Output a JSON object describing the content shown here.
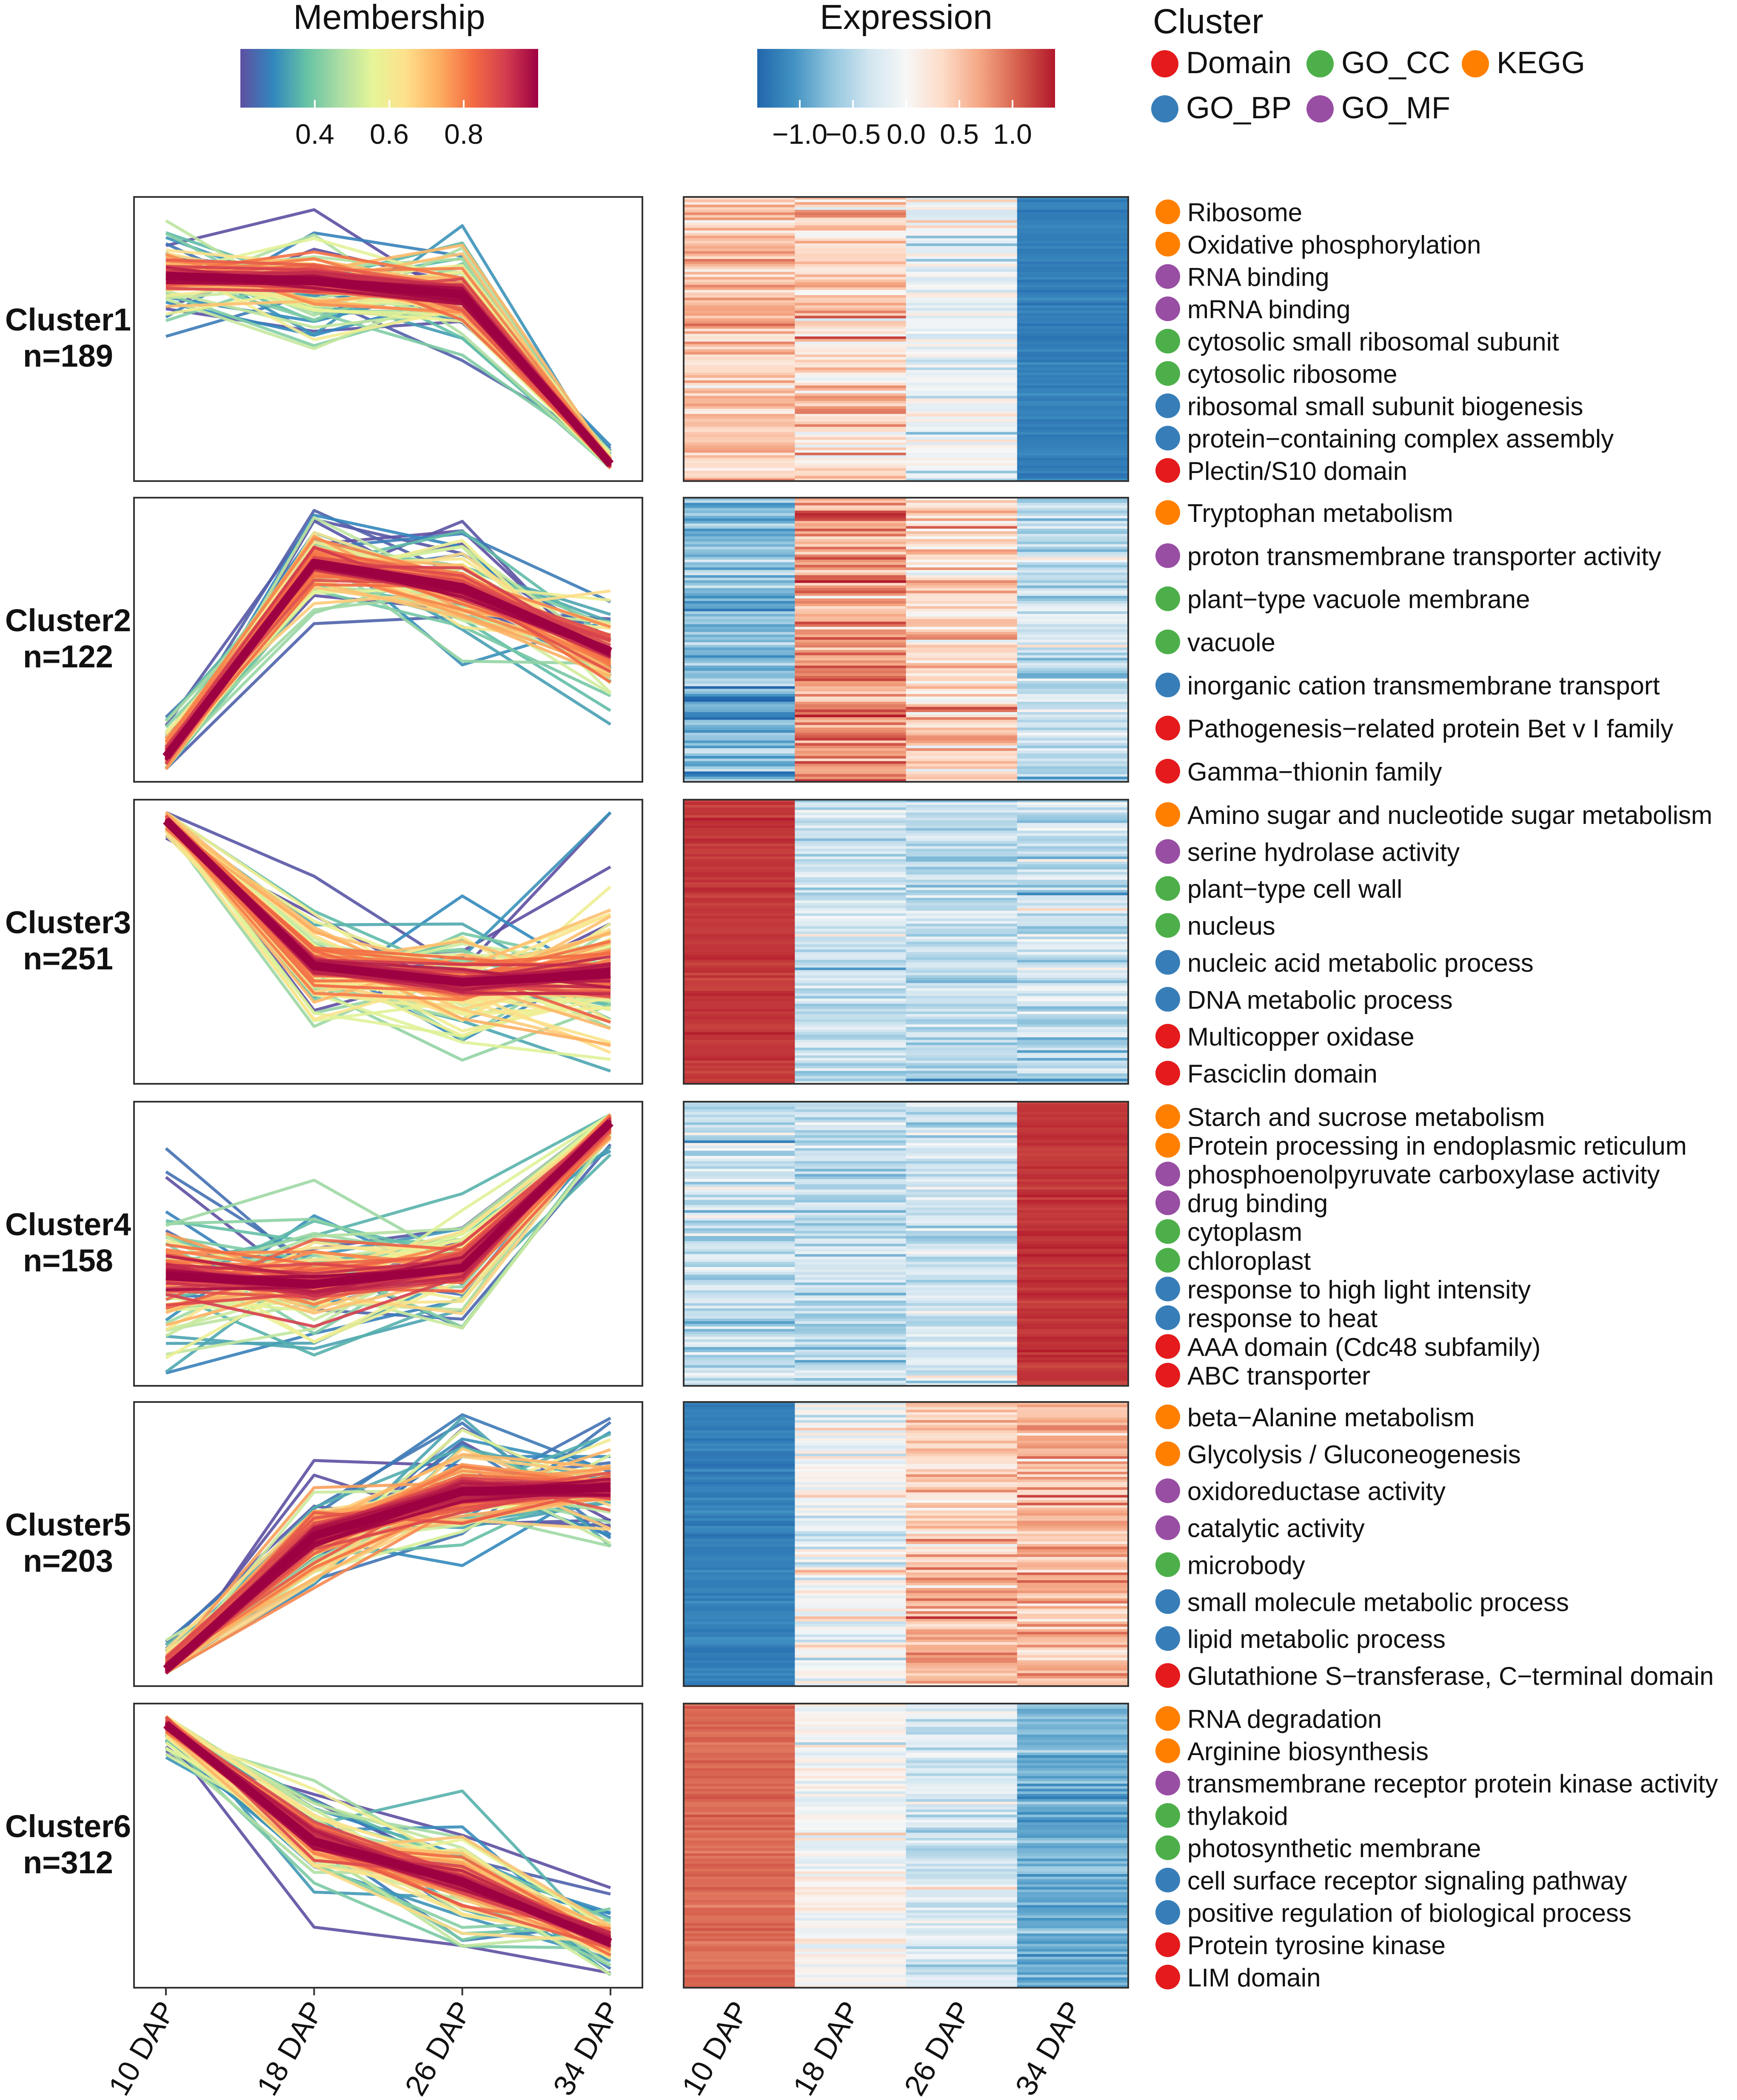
{
  "legends": {
    "membership": {
      "title": "Membership",
      "ticks": [
        "0.4",
        "0.6",
        "0.8"
      ],
      "tick_values": [
        0.4,
        0.6,
        0.8
      ],
      "range": [
        0.2,
        1.0
      ]
    },
    "expression": {
      "title": "Expression",
      "ticks": [
        "−1.0",
        "−0.5",
        "0.0",
        "0.5",
        "1.0"
      ],
      "tick_values": [
        -1.0,
        -0.5,
        0.0,
        0.5,
        1.0
      ],
      "range": [
        -1.4,
        1.4
      ]
    },
    "category": {
      "title": "Cluster",
      "items": [
        {
          "label": "Domain",
          "color": "#e41a1c"
        },
        {
          "label": "GO_CC",
          "color": "#4daf4a"
        },
        {
          "label": "KEGG",
          "color": "#ff7f00"
        },
        {
          "label": "GO_BP",
          "color": "#377eb8"
        },
        {
          "label": "GO_MF",
          "color": "#984ea3"
        }
      ]
    }
  },
  "colors": {
    "membership_scale": [
      "#5e4fa2",
      "#3288bd",
      "#66c2a5",
      "#abdda4",
      "#e6f598",
      "#fee08b",
      "#fdae61",
      "#f46d43",
      "#d53e4f",
      "#9e0142"
    ],
    "expression_scale": [
      "#2166ac",
      "#4393c3",
      "#92c5de",
      "#d1e5f0",
      "#f7f7f7",
      "#fddbc7",
      "#f4a582",
      "#d6604d",
      "#b2182b"
    ],
    "KEGG": "#ff7f00",
    "GO_MF": "#984ea3",
    "GO_CC": "#4daf4a",
    "GO_BP": "#377eb8",
    "Domain": "#e41a1c"
  },
  "chart_data": {
    "type": "line",
    "title": "",
    "x": [
      "10 DAP",
      "18 DAP",
      "26 DAP",
      "34 DAP"
    ],
    "heatmap_x": [
      "10 DAP",
      "18 DAP",
      "26 DAP",
      "34 DAP"
    ],
    "clusters": [
      {
        "name": "Cluster1",
        "n_label": "n=189",
        "n": 189,
        "centroid": [
          0.78,
          0.72,
          0.55,
          -1.55
        ],
        "spread": [
          0.32,
          0.42,
          0.38,
          0.12
        ],
        "expression_mean": [
          0.55,
          0.35,
          -0.12,
          -1.2
        ],
        "expression_var": [
          0.25,
          0.3,
          0.25,
          0.06
        ],
        "terms": [
          {
            "label": "Ribosome",
            "type": "KEGG"
          },
          {
            "label": "Oxidative phosphorylation",
            "type": "KEGG"
          },
          {
            "label": "RNA binding",
            "type": "GO_MF"
          },
          {
            "label": "mRNA binding",
            "type": "GO_MF"
          },
          {
            "label": "cytosolic small ribosomal subunit",
            "type": "GO_CC"
          },
          {
            "label": "cytosolic ribosome",
            "type": "GO_CC"
          },
          {
            "label": "ribosomal small subunit biogenesis",
            "type": "GO_BP"
          },
          {
            "label": "protein−containing complex assembly",
            "type": "GO_BP"
          },
          {
            "label": "Plectin/S10 domain",
            "type": "Domain"
          }
        ]
      },
      {
        "name": "Cluster2",
        "n_label": "n=122",
        "n": 122,
        "centroid": [
          -1.45,
          0.95,
          0.65,
          -0.15
        ],
        "spread": [
          0.3,
          0.35,
          0.4,
          0.45
        ],
        "expression_mean": [
          -0.8,
          0.75,
          0.4,
          -0.4
        ],
        "expression_var": [
          0.3,
          0.28,
          0.3,
          0.25
        ],
        "terms": [
          {
            "label": "Tryptophan metabolism",
            "type": "KEGG"
          },
          {
            "label": "proton transmembrane transporter activity",
            "type": "GO_MF"
          },
          {
            "label": "plant−type vacuole membrane",
            "type": "GO_CC"
          },
          {
            "label": "vacuole",
            "type": "GO_CC"
          },
          {
            "label": "inorganic cation transmembrane transport",
            "type": "GO_BP"
          },
          {
            "label": "Pathogenesis−related protein Bet v I family",
            "type": "Domain"
          },
          {
            "label": "Gamma−thionin family",
            "type": "Domain"
          }
        ]
      },
      {
        "name": "Cluster3",
        "n_label": "n=251",
        "n": 251,
        "centroid": [
          1.5,
          -0.3,
          -0.5,
          -0.4
        ],
        "spread": [
          0.12,
          0.45,
          0.45,
          0.75
        ],
        "expression_mean": [
          1.25,
          -0.4,
          -0.45,
          -0.4
        ],
        "expression_var": [
          0.05,
          0.2,
          0.2,
          0.25
        ],
        "terms": [
          {
            "label": "Amino sugar and nucleotide sugar metabolism",
            "type": "KEGG"
          },
          {
            "label": "serine hydrolase activity",
            "type": "GO_MF"
          },
          {
            "label": "plant−type cell wall",
            "type": "GO_CC"
          },
          {
            "label": "nucleus",
            "type": "GO_CC"
          },
          {
            "label": "nucleic acid metabolic process",
            "type": "GO_BP"
          },
          {
            "label": "DNA metabolic process",
            "type": "GO_BP"
          },
          {
            "label": "Multicopper oxidase",
            "type": "Domain"
          },
          {
            "label": "Fasciclin domain",
            "type": "Domain"
          }
        ]
      },
      {
        "name": "Cluster4",
        "n_label": "n=158",
        "n": 158,
        "centroid": [
          -0.4,
          -0.5,
          -0.3,
          1.5
        ],
        "spread": [
          0.6,
          0.55,
          0.5,
          0.15
        ],
        "expression_mean": [
          -0.4,
          -0.45,
          -0.35,
          1.25
        ],
        "expression_var": [
          0.25,
          0.25,
          0.25,
          0.06
        ],
        "terms": [
          {
            "label": "Starch and sucrose metabolism",
            "type": "KEGG"
          },
          {
            "label": "Protein processing in endoplasmic reticulum",
            "type": "KEGG"
          },
          {
            "label": "phosphoenolpyruvate carboxylase activity",
            "type": "GO_MF"
          },
          {
            "label": "drug binding",
            "type": "GO_MF"
          },
          {
            "label": "cytoplasm",
            "type": "GO_CC"
          },
          {
            "label": "chloroplast",
            "type": "GO_CC"
          },
          {
            "label": "response to high light intensity",
            "type": "GO_BP"
          },
          {
            "label": "response to heat",
            "type": "GO_BP"
          },
          {
            "label": "AAA domain (Cdc48 subfamily)",
            "type": "Domain"
          },
          {
            "label": "ABC transporter",
            "type": "Domain"
          }
        ]
      },
      {
        "name": "Cluster5",
        "n_label": "n=203",
        "n": 203,
        "centroid": [
          -1.55,
          0.1,
          0.65,
          0.7
        ],
        "spread": [
          0.2,
          0.5,
          0.45,
          0.4
        ],
        "expression_mean": [
          -1.2,
          -0.05,
          0.5,
          0.55
        ],
        "expression_var": [
          0.06,
          0.25,
          0.25,
          0.25
        ],
        "terms": [
          {
            "label": "beta−Alanine metabolism",
            "type": "KEGG"
          },
          {
            "label": "Glycolysis / Gluconeogenesis",
            "type": "KEGG"
          },
          {
            "label": "oxidoreductase activity",
            "type": "GO_MF"
          },
          {
            "label": "catalytic activity",
            "type": "GO_MF"
          },
          {
            "label": "microbody",
            "type": "GO_CC"
          },
          {
            "label": "small molecule metabolic process",
            "type": "GO_BP"
          },
          {
            "label": "lipid metabolic process",
            "type": "GO_BP"
          },
          {
            "label": "Glutathione S−transferase, C−terminal domain",
            "type": "Domain"
          }
        ]
      },
      {
        "name": "Cluster6",
        "n_label": "n=312",
        "n": 312,
        "centroid": [
          1.5,
          0.05,
          -0.45,
          -1.2
        ],
        "spread": [
          0.15,
          0.4,
          0.45,
          0.25
        ],
        "expression_mean": [
          1.0,
          0.0,
          -0.3,
          -0.85
        ],
        "expression_var": [
          0.06,
          0.2,
          0.2,
          0.15
        ],
        "terms": [
          {
            "label": "RNA degradation",
            "type": "KEGG"
          },
          {
            "label": "Arginine biosynthesis",
            "type": "KEGG"
          },
          {
            "label": "transmembrane receptor protein kinase activity",
            "type": "GO_MF"
          },
          {
            "label": "thylakoid",
            "type": "GO_CC"
          },
          {
            "label": "photosynthetic membrane",
            "type": "GO_CC"
          },
          {
            "label": "cell surface receptor signaling pathway",
            "type": "GO_BP"
          },
          {
            "label": "positive regulation of biological process",
            "type": "GO_BP"
          },
          {
            "label": "Protein tyrosine kinase",
            "type": "Domain"
          },
          {
            "label": "LIM domain",
            "type": "Domain"
          }
        ]
      }
    ]
  }
}
